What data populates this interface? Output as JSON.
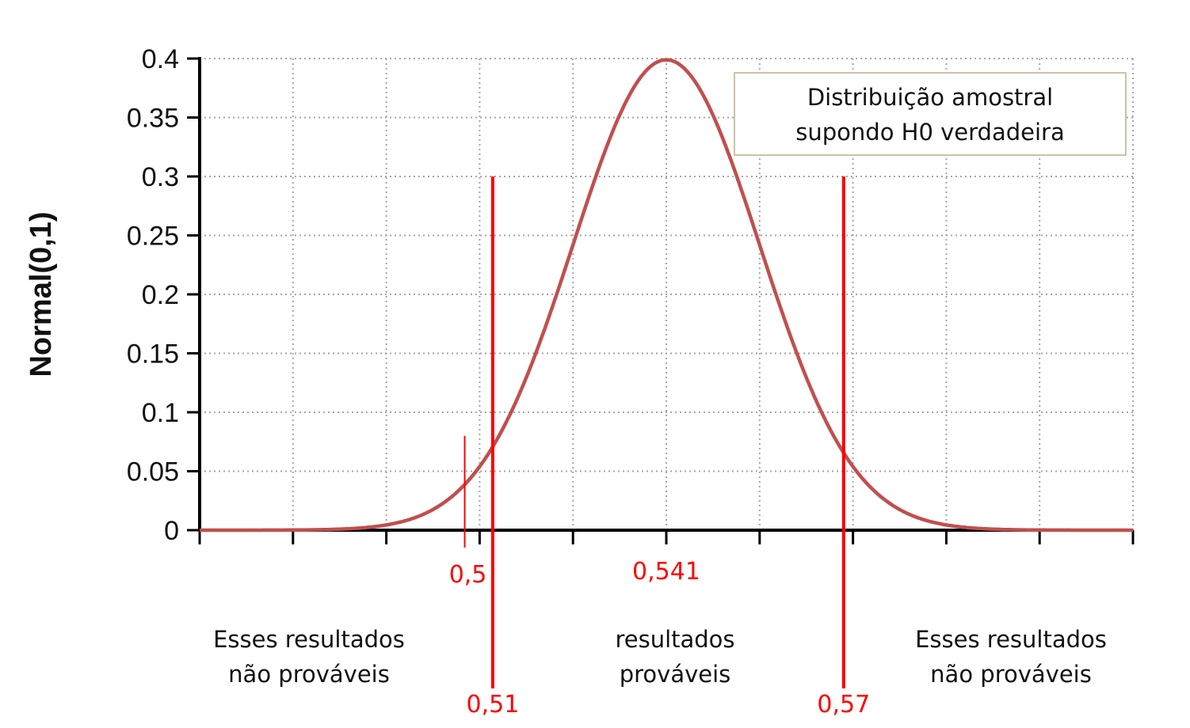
{
  "chart_data": {
    "type": "line",
    "ylabel": "Normal(0,1)",
    "ylim": [
      0,
      0.4
    ],
    "xlim": [
      -5,
      5
    ],
    "yticks": [
      "0",
      "0.05",
      "0.1",
      "0.15",
      "0.2",
      "0.25",
      "0.3",
      "0.35",
      "0.4"
    ],
    "ytick_values": [
      0,
      0.05,
      0.1,
      0.15,
      0.2,
      0.25,
      0.3,
      0.35,
      0.4
    ],
    "xtick_values": [
      -5,
      -4,
      -3,
      -2,
      -1,
      0,
      1,
      2,
      3,
      4,
      5
    ],
    "grid": true,
    "series": [
      {
        "function": "standard normal density",
        "x_range": [
          -5,
          5
        ],
        "color": "#c0504d"
      }
    ],
    "legend": {
      "line1": "Distribuição amostral",
      "line2": "supondo H0 verdadeira",
      "placement": "top-right"
    },
    "markers": [
      {
        "label": "0,5",
        "x": -2.16,
        "y_top": 0.08,
        "thin": true
      },
      {
        "label": "0,51",
        "x": -1.86,
        "y_top": 0.3,
        "thin": false
      },
      {
        "label": "0,541",
        "x": 0.0,
        "y_top": 0.4,
        "line": false
      },
      {
        "label": "0,57",
        "x": 1.9,
        "y_top": 0.3,
        "thin": false
      }
    ],
    "regions": [
      {
        "line1": "Esses resultados",
        "line2": "não prováveis"
      },
      {
        "line1": "resultados",
        "line2": "prováveis"
      },
      {
        "line1": "Esses resultados",
        "line2": "não prováveis"
      }
    ],
    "marker_color": "#ff0000"
  }
}
